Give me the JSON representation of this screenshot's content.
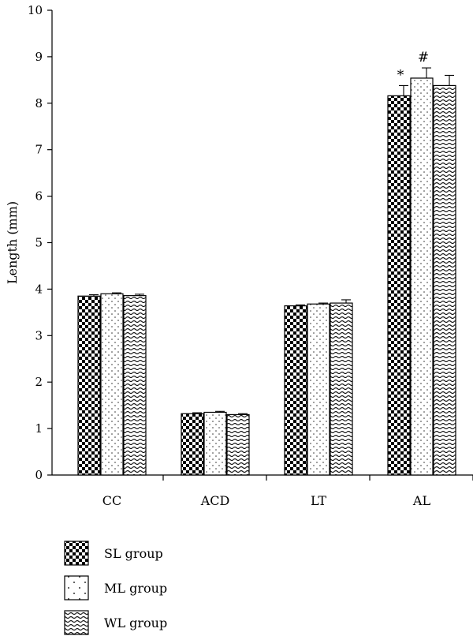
{
  "chart_data": {
    "type": "bar",
    "title": "",
    "xlabel": "",
    "ylabel": "Length (mm)",
    "ylim": [
      0,
      10
    ],
    "yticks": [
      0,
      1,
      2,
      3,
      4,
      5,
      6,
      7,
      8,
      9,
      10
    ],
    "grid": false,
    "legend_position": "bottom-left",
    "categories": [
      "CC",
      "ACD",
      "LT",
      "AL"
    ],
    "series": [
      {
        "name": "SL group",
        "pattern": "checker",
        "values": [
          3.85,
          1.32,
          3.64,
          8.16
        ],
        "errors": [
          0.03,
          0.02,
          0.02,
          0.22
        ]
      },
      {
        "name": "ML group",
        "pattern": "dots",
        "values": [
          3.9,
          1.35,
          3.68,
          8.54
        ],
        "errors": [
          0.02,
          0.02,
          0.02,
          0.22
        ]
      },
      {
        "name": "WL group",
        "pattern": "waves",
        "values": [
          3.86,
          1.3,
          3.7,
          8.38
        ],
        "errors": [
          0.03,
          0.02,
          0.07,
          0.22
        ]
      }
    ],
    "annotations": [
      {
        "category": "AL",
        "series": "SL group",
        "text": "*"
      },
      {
        "category": "AL",
        "series": "ML group",
        "text": "#"
      }
    ]
  }
}
